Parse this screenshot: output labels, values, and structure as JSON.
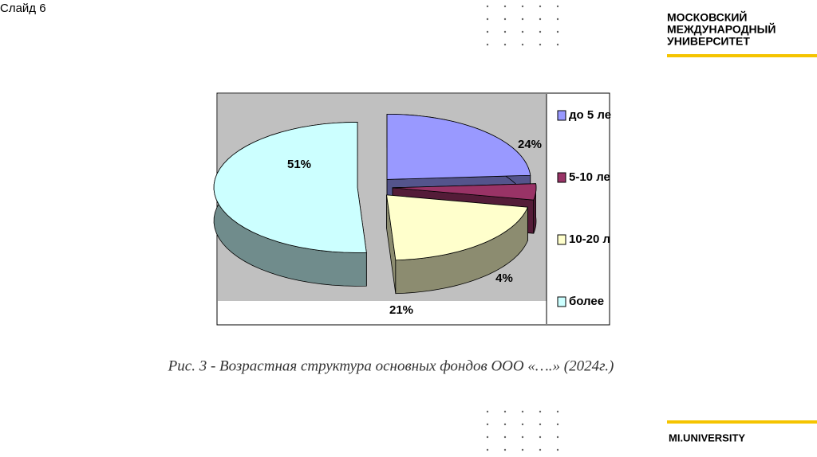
{
  "slide": {
    "label": "Слайд 6"
  },
  "logo": {
    "lines": [
      "МОСКОВСКИЙ",
      "МЕЖДУНАРОДНЫЙ",
      "УНИВЕРСИТЕТ"
    ],
    "footer": "MI.UNIVERSITY"
  },
  "caption": "Рис. 3 - Возрастная структура основных фондов ООО «….» (2024г.)",
  "chart_data": {
    "type": "pie",
    "categories": [
      "до 5 ле",
      "5-10 ле",
      "10-20 л",
      "более"
    ],
    "values": [
      24,
      4,
      21,
      51
    ],
    "value_labels": [
      "24%",
      "4%",
      "21%",
      "51%"
    ],
    "colors": [
      "#9999ff",
      "#993366",
      "#ffffcc",
      "#ccffff"
    ],
    "legend": "right"
  }
}
